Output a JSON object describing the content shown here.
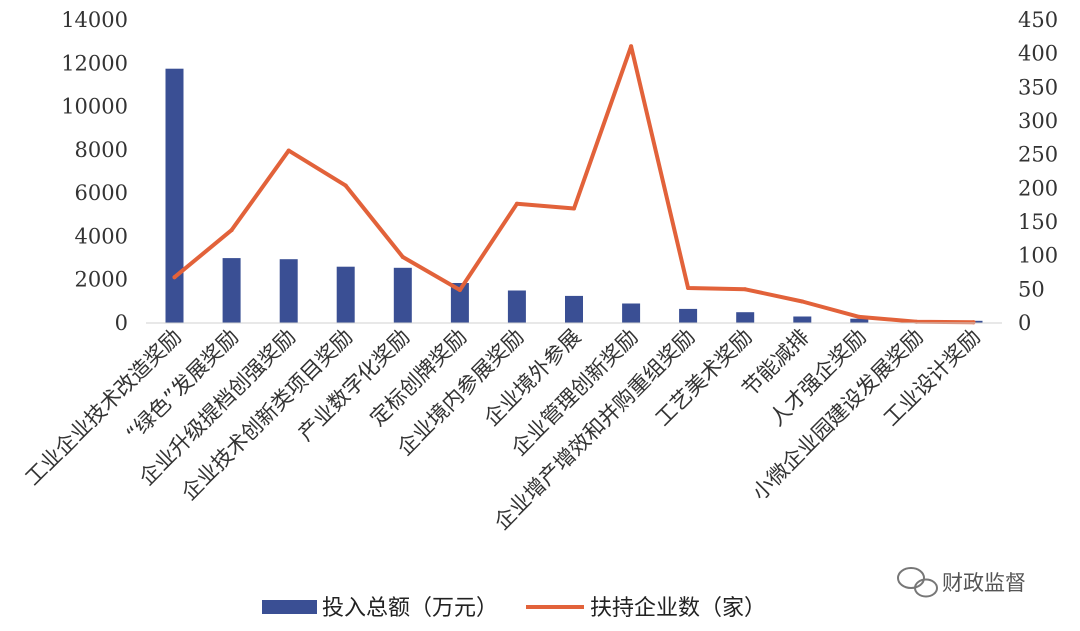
{
  "chart_data": {
    "type": "bar+line",
    "categories": [
      "工业企业技术改造奖励",
      "“绿色”发展奖励",
      "企业升级提档创强奖励",
      "企业技术创新类项目奖励",
      "产业数字化奖励",
      "定标创牌奖励",
      "企业境内参展奖励",
      "企业境外参展",
      "企业管理创新奖励",
      "企业增产增效和并购重组奖励",
      "工艺美术奖励",
      "节能减排",
      "人才强企奖励",
      "小微企业园建设发展奖励",
      "工业设计奖励"
    ],
    "series": [
      {
        "name": "投入总额（万元）",
        "type": "bar",
        "axis": "left",
        "color": "#3a4f94",
        "values": [
          11750,
          3000,
          2950,
          2600,
          2550,
          1850,
          1500,
          1250,
          900,
          650,
          500,
          300,
          200,
          50,
          100
        ]
      },
      {
        "name": "扶持企业数（家）",
        "type": "line",
        "axis": "right",
        "color": "#e2623a",
        "values": [
          68,
          138,
          256,
          204,
          98,
          49,
          177,
          170,
          411,
          52,
          50,
          32,
          9,
          2,
          1
        ]
      }
    ],
    "y_left": {
      "ticks": [
        "0",
        "2000",
        "4000",
        "6000",
        "8000",
        "10000",
        "12000",
        "14000"
      ],
      "range": [
        0,
        14000
      ]
    },
    "y_right": {
      "ticks": [
        "0",
        "50",
        "100",
        "150",
        "200",
        "250",
        "300",
        "350",
        "400",
        "450"
      ],
      "range": [
        0,
        450
      ]
    },
    "grid": false,
    "legend_position": "bottom"
  },
  "watermark": {
    "text": "财政监督",
    "icon": "wechat-icon"
  }
}
